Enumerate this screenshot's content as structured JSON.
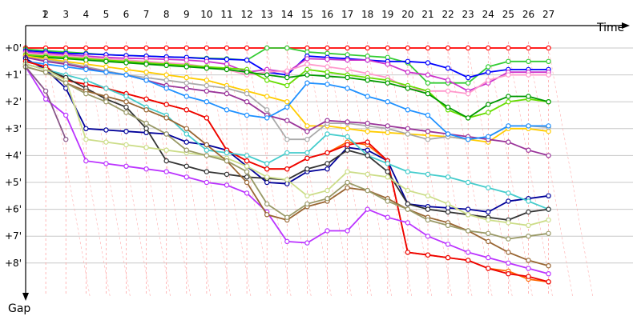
{
  "chart_data": {
    "type": "line",
    "xlabel": "Time",
    "ylabel": "Gap",
    "grid": true,
    "x_ticks": [
      "1",
      "2",
      "3",
      "4",
      "5",
      "6",
      "7",
      "8",
      "9",
      "10",
      "11",
      "12",
      "13",
      "14",
      "15",
      "16",
      "17",
      "18",
      "19",
      "20",
      "21",
      "22",
      "23",
      "24",
      "25",
      "26",
      "27"
    ],
    "y_ticks": [
      "+0'",
      "+1'",
      "+2'",
      "+3'",
      "+4'",
      "+5'",
      "+6'",
      "+7'",
      "+8'"
    ],
    "ylim": [
      0,
      9
    ],
    "series": [
      {
        "color": "#ff0000",
        "values": [
          0.0,
          0.0,
          0.0,
          0.0,
          0.0,
          0.0,
          0.0,
          0.0,
          0.0,
          0.0,
          0.0,
          0.0,
          0.0,
          0.0,
          0.0,
          0.0,
          0.0,
          0.0,
          0.0,
          0.0,
          0.0,
          0.0,
          0.0,
          0.0,
          0.0,
          0.0,
          0.0
        ]
      },
      {
        "color": "#33cc33",
        "values": [
          0.05,
          0.1,
          0.15,
          0.2,
          0.25,
          0.28,
          0.3,
          0.33,
          0.35,
          0.38,
          0.4,
          0.45,
          0.0,
          0.0,
          0.15,
          0.2,
          0.25,
          0.3,
          0.35,
          0.55,
          1.3,
          1.3,
          1.3,
          0.7,
          0.5,
          0.5,
          0.5
        ]
      },
      {
        "color": "#0000ff",
        "values": [
          0.1,
          0.15,
          0.2,
          0.22,
          0.25,
          0.28,
          0.3,
          0.33,
          0.35,
          0.4,
          0.42,
          0.45,
          0.9,
          1.0,
          0.3,
          0.35,
          0.4,
          0.45,
          0.5,
          0.5,
          0.55,
          0.75,
          1.1,
          0.9,
          0.8,
          0.8,
          0.8
        ]
      },
      {
        "color": "#cc33cc",
        "values": [
          0.15,
          0.2,
          0.25,
          0.3,
          0.35,
          0.38,
          0.4,
          0.42,
          0.45,
          0.5,
          0.6,
          0.9,
          0.8,
          0.9,
          0.4,
          0.42,
          0.45,
          0.45,
          0.6,
          0.9,
          1.0,
          1.2,
          1.6,
          1.3,
          0.9,
          0.9,
          0.9
        ]
      },
      {
        "color": "#ff99cc",
        "values": [
          0.2,
          0.25,
          0.3,
          0.35,
          0.4,
          0.45,
          0.5,
          0.55,
          0.6,
          0.7,
          0.8,
          1.0,
          0.9,
          0.85,
          0.6,
          0.7,
          0.8,
          0.95,
          1.1,
          1.5,
          1.6,
          1.6,
          1.7,
          1.2,
          1.0,
          1.0,
          1.0
        ]
      },
      {
        "color": "#66dd00",
        "values": [
          0.25,
          0.3,
          0.35,
          0.4,
          0.45,
          0.5,
          0.55,
          0.6,
          0.65,
          0.7,
          0.75,
          0.8,
          1.2,
          1.4,
          0.8,
          0.9,
          1.0,
          1.1,
          1.2,
          1.4,
          1.6,
          2.3,
          2.6,
          2.4,
          2.0,
          1.9,
          2.0
        ]
      },
      {
        "color": "#009900",
        "values": [
          0.3,
          0.35,
          0.4,
          0.45,
          0.5,
          0.55,
          0.6,
          0.65,
          0.7,
          0.75,
          0.8,
          0.9,
          1.0,
          1.1,
          1.0,
          1.05,
          1.1,
          1.2,
          1.3,
          1.5,
          1.7,
          2.2,
          2.6,
          2.1,
          1.8,
          1.8,
          2.0
        ]
      },
      {
        "color": "#ffcc00",
        "values": [
          0.3,
          0.4,
          0.5,
          0.6,
          0.7,
          0.8,
          0.9,
          1.0,
          1.1,
          1.2,
          1.4,
          1.6,
          1.8,
          2.0,
          2.9,
          2.9,
          3.0,
          3.1,
          3.15,
          3.2,
          3.25,
          3.3,
          3.4,
          3.5,
          3.0,
          3.0,
          3.1
        ]
      },
      {
        "color": "#aaaaaa",
        "values": [
          0.35,
          0.45,
          0.55,
          0.7,
          0.85,
          1.0,
          1.1,
          1.2,
          1.3,
          1.4,
          1.5,
          1.7,
          2.3,
          3.4,
          3.4,
          2.8,
          2.8,
          2.9,
          3.0,
          3.2,
          3.4,
          3.3,
          3.4,
          3.3,
          2.9,
          2.9,
          2.95
        ]
      },
      {
        "color": "#993399",
        "values": [
          0.35,
          0.5,
          0.6,
          0.75,
          0.9,
          1.0,
          1.2,
          1.4,
          1.5,
          1.6,
          1.7,
          2.0,
          2.5,
          2.7,
          3.1,
          2.7,
          2.75,
          2.8,
          2.9,
          3.0,
          3.1,
          3.2,
          3.3,
          3.4,
          3.5,
          3.8,
          4.0
        ]
      },
      {
        "color": "#000099",
        "values": [
          0.4,
          0.8,
          1.5,
          3.0,
          3.05,
          3.1,
          3.15,
          3.2,
          3.5,
          3.6,
          3.8,
          4.4,
          5.0,
          5.05,
          4.6,
          4.5,
          3.7,
          3.8,
          4.2,
          5.8,
          5.9,
          5.95,
          6.0,
          6.1,
          5.7,
          5.6,
          5.5
        ]
      },
      {
        "color": "#1e90ff",
        "values": [
          0.5,
          0.6,
          0.7,
          0.8,
          0.9,
          1.0,
          1.2,
          1.5,
          1.8,
          2.0,
          2.3,
          2.5,
          2.6,
          2.2,
          1.3,
          1.35,
          1.5,
          1.8,
          2.0,
          2.3,
          2.5,
          3.2,
          3.4,
          3.3,
          2.9,
          2.9,
          2.9
        ]
      },
      {
        "color": "#ff6600",
        "values": [
          0.5,
          0.7,
          1.2,
          1.35,
          1.5,
          1.7,
          1.9,
          2.1,
          2.3,
          2.6,
          3.8,
          4.2,
          4.5,
          4.5,
          4.1,
          3.9,
          3.5,
          3.6,
          4.2,
          7.6,
          7.7,
          7.8,
          7.9,
          8.2,
          8.3,
          8.6,
          8.7
        ]
      },
      {
        "color": "#ee0000",
        "values": [
          0.5,
          0.7,
          1.2,
          1.35,
          1.5,
          1.7,
          1.9,
          2.1,
          2.3,
          2.6,
          3.8,
          4.2,
          4.5,
          4.5,
          4.1,
          3.9,
          3.6,
          3.5,
          4.2,
          7.6,
          7.7,
          7.8,
          7.9,
          8.2,
          8.4,
          8.5,
          8.7
        ]
      },
      {
        "color": "#44cccc",
        "values": [
          0.6,
          0.8,
          1.0,
          1.2,
          1.5,
          1.8,
          2.2,
          2.5,
          3.2,
          3.8,
          3.9,
          4.0,
          4.3,
          3.9,
          3.9,
          3.2,
          3.3,
          4.0,
          4.3,
          4.6,
          4.7,
          4.8,
          5.0,
          5.2,
          5.4,
          5.7,
          6.0
        ]
      },
      {
        "color": "#333333",
        "values": [
          0.6,
          0.8,
          1.1,
          1.5,
          1.9,
          2.2,
          3.0,
          4.2,
          4.4,
          4.6,
          4.7,
          4.8,
          4.85,
          4.9,
          4.5,
          4.3,
          3.8,
          4.0,
          4.6,
          5.8,
          6.0,
          6.1,
          6.2,
          6.3,
          6.4,
          6.1,
          6.0
        ]
      },
      {
        "color": "#ccdd88",
        "values": [
          0.6,
          0.8,
          1.2,
          3.4,
          3.5,
          3.6,
          3.7,
          3.8,
          3.9,
          4.0,
          4.1,
          4.4,
          4.8,
          4.9,
          5.5,
          5.3,
          4.6,
          4.7,
          4.8,
          5.3,
          5.5,
          5.8,
          6.2,
          6.4,
          6.5,
          6.6,
          6.4
        ]
      },
      {
        "color": "#bb33ff",
        "values": [
          0.7,
          1.9,
          2.5,
          4.2,
          4.3,
          4.4,
          4.5,
          4.6,
          4.8,
          5.0,
          5.1,
          5.4,
          6.1,
          7.2,
          7.25,
          6.8,
          6.8,
          6.0,
          6.3,
          6.5,
          7.0,
          7.3,
          7.6,
          7.8,
          8.0,
          8.2,
          8.4
        ]
      },
      {
        "color": "#996633",
        "values": [
          0.7,
          0.9,
          1.3,
          1.6,
          1.8,
          2.0,
          2.3,
          2.6,
          3.0,
          3.6,
          4.2,
          5.0,
          6.2,
          6.4,
          5.9,
          5.7,
          5.2,
          5.3,
          5.6,
          6.0,
          6.3,
          6.5,
          6.8,
          7.2,
          7.6,
          7.9,
          8.1
        ]
      },
      {
        "color": "#885588",
        "values": [
          0.7,
          1.6,
          3.4
        ]
      },
      {
        "color": "#999966",
        "values": [
          0.7,
          0.9,
          1.3,
          1.7,
          2.0,
          2.4,
          2.8,
          3.2,
          3.8,
          4.0,
          4.2,
          4.6,
          5.8,
          6.3,
          5.8,
          5.6,
          5.0,
          5.3,
          5.7,
          6.0,
          6.4,
          6.6,
          6.8,
          6.9,
          7.1,
          7.0,
          6.9
        ]
      }
    ]
  }
}
